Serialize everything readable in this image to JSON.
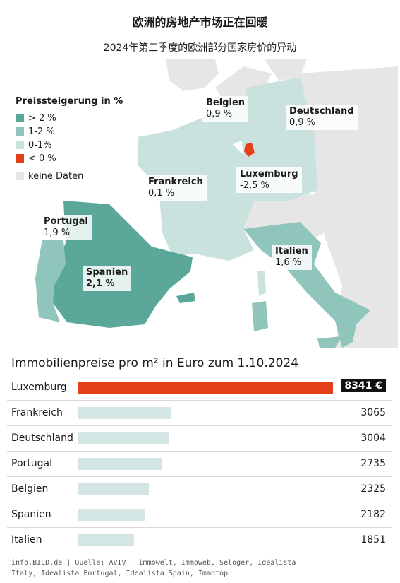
{
  "header": {
    "title": "欧洲的房地产市场正在回暖",
    "subtitle": "2024年第三季度的欧洲部分国家房价的异动"
  },
  "legend": {
    "title": "Preissteigerung in %",
    "items": [
      {
        "label": "> 2 %",
        "color": "#5ba89a"
      },
      {
        "label": "1-2 %",
        "color": "#8fc5bb"
      },
      {
        "label": "0-1%",
        "color": "#c9e2dd"
      },
      {
        "label": "< 0 %",
        "color": "#e4411b"
      }
    ],
    "no_data": {
      "label": "keine Daten",
      "color": "#e6e6e6"
    }
  },
  "map_labels": {
    "belgien": {
      "name": "Belgien",
      "value": "0,9 %"
    },
    "deutschland": {
      "name": "Deutschland",
      "value": "0,9 %"
    },
    "frankreich": {
      "name": "Frankreich",
      "value": "0,1 %"
    },
    "luxemburg": {
      "name": "Luxemburg",
      "value": "-2,5 %"
    },
    "portugal": {
      "name": "Portugal",
      "value": "1,9 %"
    },
    "spanien": {
      "name": "Spanien",
      "value": "2,1 %"
    },
    "italien": {
      "name": "Italien",
      "value": "1,6 %"
    }
  },
  "colors": {
    "high": "#5ba89a",
    "mid": "#8fc5bb",
    "low": "#c9e2dd",
    "negative": "#e4411b",
    "no_data": "#e6e6e6",
    "bar": "#d3e6e3",
    "bar_highlight": "#e4411b"
  },
  "chart_data": {
    "type": "bar",
    "title": "Immobilienpreise pro m² in Euro zum 1.10.2024",
    "categories": [
      "Luxemburg",
      "Frankreich",
      "Deutschland",
      "Portugal",
      "Belgien",
      "Spanien",
      "Italien"
    ],
    "values": [
      8341,
      3065,
      3004,
      2735,
      2325,
      2182,
      1851
    ],
    "value_labels": [
      "8341 €",
      "3065",
      "3004",
      "2735",
      "2325",
      "2182",
      "1851"
    ],
    "highlight": "Luxemburg",
    "orientation": "horizontal"
  },
  "source": "info.BILD.de | Quelle: AVIV – immowelt, Immoweb, Seloger, Idealista Italy, Idealista Portugal, Idealista Spain, Immotop"
}
